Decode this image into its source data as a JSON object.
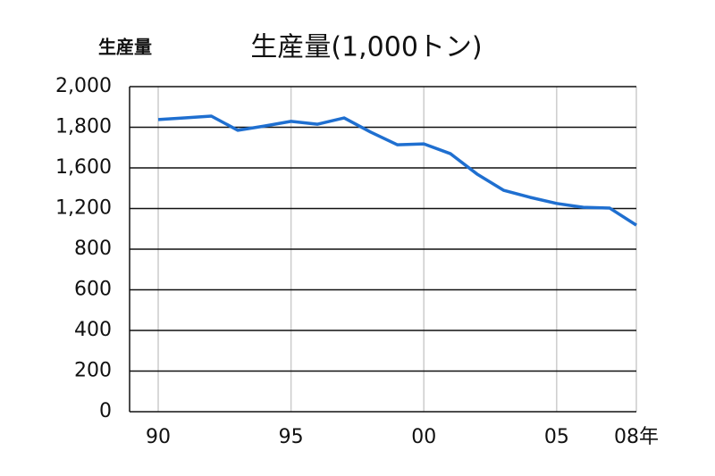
{
  "chart_data": {
    "type": "line",
    "title": "生産量(1,000トン)",
    "y_label": "生産量",
    "x": [
      1990,
      1991,
      1992,
      1993,
      1994,
      1995,
      1996,
      1997,
      1998,
      1999,
      2000,
      2001,
      2002,
      2003,
      2004,
      2005,
      2006,
      2007,
      2008
    ],
    "series": [
      {
        "color": "#1f6fd0",
        "values": [
          1838,
          1846,
          1855,
          1785,
          1806,
          1829,
          1815,
          1846,
          1776,
          1714,
          1718,
          1670,
          1540,
          1380,
          1310,
          1250,
          1212,
          1204,
          1036
        ]
      }
    ],
    "xlim": [
      1990,
      2008
    ],
    "xticks": [
      {
        "value": 1990,
        "label": "90"
      },
      {
        "value": 1995,
        "label": "95"
      },
      {
        "value": 2000,
        "label": "00"
      },
      {
        "value": 2005,
        "label": "05"
      },
      {
        "value": 2008,
        "label": "08年"
      }
    ],
    "ylim": [
      0,
      2000
    ],
    "yticks": [
      0,
      200,
      400,
      600,
      800,
      {
        "value": 1200,
        "label": "1,200"
      },
      {
        "value": 1600,
        "label": "1,600"
      },
      {
        "value": 1800,
        "label": "1,800"
      },
      {
        "value": 2000,
        "label": "2,000"
      }
    ],
    "grid": true
  }
}
